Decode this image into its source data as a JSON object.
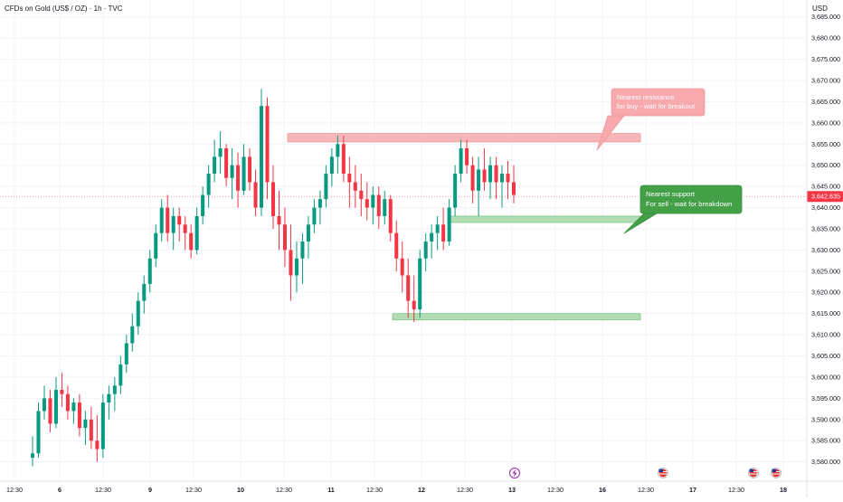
{
  "header": {
    "title": "CFDs on Gold (US$ / OZ) · 1h · TVC",
    "currency": "USD"
  },
  "colors": {
    "up": "#089981",
    "down": "#f23645",
    "resistance_fill": "#f7a9ad",
    "support_fill": "#a5d6a7",
    "support_label": "#43a047",
    "price_badge": "#f23645"
  },
  "chart_data": {
    "type": "candlestick",
    "title": "CFDs on Gold (US$ / OZ) · 1h · TVC",
    "ylim": [
      3580,
      3690
    ],
    "y_ticks": [
      "3,580.000",
      "3,585.000",
      "3,590.000",
      "3,595.000",
      "3,600.000",
      "3,605.000",
      "3,610.000",
      "3,615.000",
      "3,620.000",
      "3,625.000",
      "3,630.000",
      "3,635.000",
      "3,640.000",
      "3,645.000",
      "3,650.000",
      "3,655.000",
      "3,660.000",
      "3,665.000",
      "3,670.000",
      "3,675.000",
      "3,680.000",
      "3,685.000"
    ],
    "x_ticks": [
      {
        "label": "12:30",
        "bold": false
      },
      {
        "label": "6",
        "bold": true
      },
      {
        "label": "12:30",
        "bold": false
      },
      {
        "label": "9",
        "bold": true
      },
      {
        "label": "12:30",
        "bold": false
      },
      {
        "label": "10",
        "bold": true
      },
      {
        "label": "12:30",
        "bold": false
      },
      {
        "label": "11",
        "bold": true
      },
      {
        "label": "12:30",
        "bold": false
      },
      {
        "label": "12",
        "bold": true
      },
      {
        "label": "12:30",
        "bold": false
      },
      {
        "label": "13",
        "bold": true
      },
      {
        "label": "12:30",
        "bold": false
      },
      {
        "label": "16",
        "bold": true
      },
      {
        "label": "12:30",
        "bold": false
      },
      {
        "label": "17",
        "bold": true
      },
      {
        "label": "12:30",
        "bold": false
      },
      {
        "label": "18",
        "bold": true
      }
    ],
    "last_price": {
      "value": 3642.635,
      "label": "3,642.635"
    },
    "zones": [
      {
        "name": "resistance",
        "from": 3655.5,
        "to": 3657.5,
        "x_start": 40,
        "x_end": 100
      },
      {
        "name": "support-near",
        "from": 3636.5,
        "to": 3638.0,
        "x_start": 63,
        "x_end": 100
      },
      {
        "name": "support-low",
        "from": 3613.5,
        "to": 3615.0,
        "x_start": 53,
        "x_end": 100
      }
    ],
    "annotations": {
      "resistance": {
        "line1": "Nearest resistance",
        "line2": "for buy - wait for breakout"
      },
      "support": {
        "line1": "Nearest support",
        "line2": "For sell - wait for breakdown"
      }
    },
    "candles": [
      [
        3581,
        3586,
        3579,
        3582
      ],
      [
        3582,
        3594,
        3581,
        3592
      ],
      [
        3592,
        3598,
        3590,
        3595
      ],
      [
        3595,
        3597,
        3587,
        3589
      ],
      [
        3589,
        3600,
        3588,
        3597
      ],
      [
        3597,
        3601,
        3593,
        3596
      ],
      [
        3596,
        3598,
        3590,
        3592
      ],
      [
        3592,
        3595,
        3589,
        3594
      ],
      [
        3594,
        3596,
        3586,
        3588
      ],
      [
        3588,
        3592,
        3584,
        3590
      ],
      [
        3590,
        3593,
        3583,
        3585
      ],
      [
        3585,
        3591,
        3580,
        3583
      ],
      [
        3583,
        3596,
        3581,
        3594
      ],
      [
        3594,
        3598,
        3590,
        3596
      ],
      [
        3596,
        3600,
        3592,
        3598
      ],
      [
        3598,
        3605,
        3596,
        3603
      ],
      [
        3603,
        3610,
        3601,
        3608
      ],
      [
        3608,
        3615,
        3606,
        3612
      ],
      [
        3612,
        3620,
        3610,
        3618
      ],
      [
        3618,
        3624,
        3615,
        3622
      ],
      [
        3622,
        3630,
        3620,
        3628
      ],
      [
        3628,
        3636,
        3626,
        3634
      ],
      [
        3634,
        3642,
        3632,
        3640
      ],
      [
        3640,
        3643,
        3632,
        3634
      ],
      [
        3634,
        3640,
        3630,
        3638
      ],
      [
        3638,
        3640,
        3632,
        3636
      ],
      [
        3636,
        3638,
        3630,
        3634
      ],
      [
        3634,
        3636,
        3628,
        3630
      ],
      [
        3630,
        3640,
        3629,
        3638
      ],
      [
        3638,
        3645,
        3636,
        3643
      ],
      [
        3643,
        3650,
        3640,
        3648
      ],
      [
        3648,
        3656,
        3646,
        3652
      ],
      [
        3652,
        3658,
        3648,
        3654
      ],
      [
        3654,
        3655,
        3645,
        3647
      ],
      [
        3647,
        3654,
        3642,
        3650
      ],
      [
        3650,
        3653,
        3640,
        3644
      ],
      [
        3644,
        3655,
        3643,
        3652
      ],
      [
        3652,
        3654,
        3644,
        3646
      ],
      [
        3646,
        3649,
        3638,
        3640
      ],
      [
        3640,
        3668,
        3638,
        3664
      ],
      [
        3664,
        3666,
        3642,
        3646
      ],
      [
        3646,
        3650,
        3635,
        3638
      ],
      [
        3638,
        3644,
        3630,
        3636
      ],
      [
        3636,
        3640,
        3626,
        3630
      ],
      [
        3630,
        3636,
        3618,
        3624
      ],
      [
        3624,
        3632,
        3620,
        3628
      ],
      [
        3628,
        3634,
        3622,
        3632
      ],
      [
        3632,
        3638,
        3628,
        3636
      ],
      [
        3636,
        3642,
        3634,
        3640
      ],
      [
        3640,
        3644,
        3636,
        3642
      ],
      [
        3642,
        3650,
        3640,
        3648
      ],
      [
        3648,
        3654,
        3645,
        3652
      ],
      [
        3652,
        3657,
        3648,
        3655
      ],
      [
        3655,
        3657,
        3646,
        3648
      ],
      [
        3648,
        3652,
        3640,
        3646
      ],
      [
        3646,
        3650,
        3640,
        3644
      ],
      [
        3644,
        3648,
        3638,
        3642
      ],
      [
        3642,
        3646,
        3637,
        3640
      ],
      [
        3640,
        3645,
        3636,
        3643
      ],
      [
        3643,
        3645,
        3635,
        3638
      ],
      [
        3638,
        3644,
        3636,
        3642
      ],
      [
        3642,
        3643,
        3632,
        3634
      ],
      [
        3634,
        3637,
        3625,
        3628
      ],
      [
        3628,
        3632,
        3620,
        3624
      ],
      [
        3624,
        3628,
        3614,
        3618
      ],
      [
        3618,
        3624,
        3613,
        3616
      ],
      [
        3616,
        3630,
        3614,
        3628
      ],
      [
        3628,
        3634,
        3625,
        3632
      ],
      [
        3632,
        3636,
        3628,
        3634
      ],
      [
        3634,
        3638,
        3630,
        3636
      ],
      [
        3636,
        3640,
        3630,
        3632
      ],
      [
        3632,
        3642,
        3631,
        3640
      ],
      [
        3640,
        3650,
        3638,
        3648
      ],
      [
        3648,
        3656,
        3646,
        3654
      ],
      [
        3654,
        3656,
        3648,
        3650
      ],
      [
        3650,
        3652,
        3641,
        3644
      ],
      [
        3644,
        3652,
        3638,
        3649
      ],
      [
        3649,
        3654,
        3644,
        3646
      ],
      [
        3646,
        3652,
        3642,
        3650
      ],
      [
        3650,
        3652,
        3642,
        3646
      ],
      [
        3646,
        3650,
        3640,
        3648
      ],
      [
        3648,
        3651,
        3642,
        3646
      ],
      [
        3646,
        3650,
        3641,
        3643
      ]
    ]
  },
  "bottom_icons": [
    "lightning-event-icon",
    "us-flag-event-icon",
    "us-flag-event-icon",
    "us-flag-event-icon"
  ]
}
